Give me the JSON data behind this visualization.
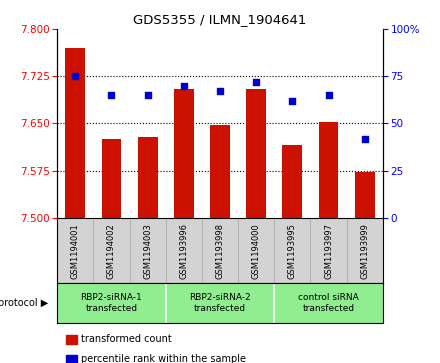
{
  "title": "GDS5355 / ILMN_1904641",
  "samples": [
    "GSM1194001",
    "GSM1194002",
    "GSM1194003",
    "GSM1193996",
    "GSM1193998",
    "GSM1194000",
    "GSM1193995",
    "GSM1193997",
    "GSM1193999"
  ],
  "bar_values": [
    7.77,
    7.625,
    7.628,
    7.705,
    7.648,
    7.705,
    7.615,
    7.652,
    7.573
  ],
  "percentile_values": [
    75,
    65,
    65,
    70,
    67,
    72,
    62,
    65,
    42
  ],
  "ylim_left": [
    7.5,
    7.8
  ],
  "ylim_right": [
    0,
    100
  ],
  "yticks_left": [
    7.5,
    7.575,
    7.65,
    7.725,
    7.8
  ],
  "yticks_right": [
    0,
    25,
    50,
    75,
    100
  ],
  "bar_color": "#CC1100",
  "dot_color": "#0000CC",
  "bg_color": "#FFFFFF",
  "sample_bg": "#D3D3D3",
  "protocol_bg": "#90EE90",
  "base_value": 7.5,
  "protocol_groups": [
    {
      "label": "RBP2-siRNA-1\ntransfected",
      "start": 0,
      "end": 3
    },
    {
      "label": "RBP2-siRNA-2\ntransfected",
      "start": 3,
      "end": 6
    },
    {
      "label": "control siRNA\ntransfected",
      "start": 6,
      "end": 9
    }
  ],
  "legend_items": [
    {
      "label": "transformed count",
      "color": "#CC1100"
    },
    {
      "label": "percentile rank within the sample",
      "color": "#0000CC"
    }
  ]
}
